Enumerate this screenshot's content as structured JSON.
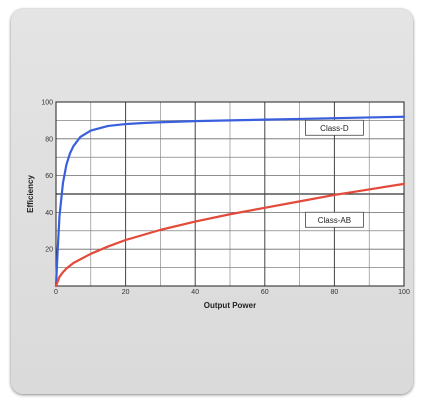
{
  "chart_data": {
    "type": "line",
    "title": "",
    "xlabel": "Output Power",
    "ylabel": "Efficiency",
    "xlim": [
      0,
      100
    ],
    "ylim": [
      0,
      100
    ],
    "x_ticks": [
      0,
      20,
      40,
      60,
      80,
      100
    ],
    "y_ticks": [
      20,
      40,
      60,
      80,
      100
    ],
    "grid": true,
    "series": [
      {
        "name": "Class-D",
        "color": "#3a5fdc",
        "x": [
          0,
          0.5,
          1,
          2,
          3,
          4,
          5,
          7,
          10,
          15,
          20,
          25,
          30,
          40,
          50,
          60,
          70,
          80,
          90,
          100
        ],
        "y": [
          0,
          20,
          38,
          56,
          66,
          72,
          76,
          81,
          84.5,
          87,
          88,
          88.6,
          89,
          89.6,
          90,
          90.4,
          90.8,
          91.2,
          91.6,
          92
        ]
      },
      {
        "name": "Class-AB",
        "color": "#e34a3a",
        "x": [
          0,
          1,
          2,
          3,
          5,
          10,
          15,
          20,
          30,
          40,
          50,
          60,
          70,
          80,
          90,
          100
        ],
        "y": [
          0,
          5,
          7.5,
          9.5,
          12.5,
          17.5,
          21.5,
          25,
          30.5,
          35,
          39,
          42.5,
          46,
          49.5,
          52.5,
          55.5
        ]
      }
    ],
    "legend_labels": [
      {
        "text": "Class-D",
        "x": 80,
        "y": 86
      },
      {
        "text": "Class-AB",
        "x": 80,
        "y": 36
      }
    ]
  }
}
